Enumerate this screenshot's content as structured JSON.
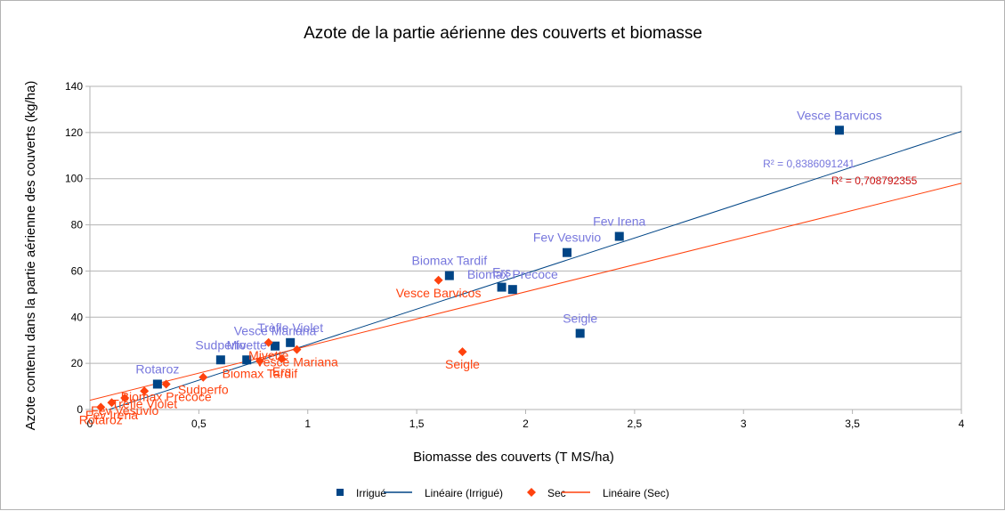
{
  "chart_data": {
    "type": "scatter",
    "title": "Azote de la partie aérienne des couverts et biomasse",
    "xlabel": "Biomasse des couverts (T MS/ha)",
    "ylabel": "Azote contenu dans la partie aérienne des couverts (kg/ha)",
    "xlim": [
      0,
      4
    ],
    "ylim": [
      0,
      140
    ],
    "xticks": [
      "0",
      "0,5",
      "1",
      "1,5",
      "2",
      "2,5",
      "3",
      "3,5",
      "4"
    ],
    "yticks": [
      "0",
      "20",
      "40",
      "60",
      "80",
      "100",
      "120",
      "140"
    ],
    "grid": "horizontal",
    "legend": "bottom",
    "legend_items": [
      "Irrigué",
      "Linéaire (Irrigué)",
      "Sec",
      "Linéaire (Sec)"
    ],
    "series": [
      {
        "name": "Irrigué",
        "color": "#004586",
        "label_color": "#7777dd",
        "marker": "square",
        "points": [
          {
            "x": 3.44,
            "y": 121,
            "label": "Vesce Barvicos"
          },
          {
            "x": 2.43,
            "y": 75,
            "label": "Fev Irena"
          },
          {
            "x": 2.19,
            "y": 68,
            "label": "Fev Vesuvio"
          },
          {
            "x": 1.65,
            "y": 58,
            "label": "Biomax Tardif"
          },
          {
            "x": 1.89,
            "y": 53,
            "label": "Ers"
          },
          {
            "x": 1.94,
            "y": 52,
            "label": "Biomax Precoce"
          },
          {
            "x": 2.25,
            "y": 33,
            "label": "Seigle"
          },
          {
            "x": 0.92,
            "y": 29,
            "label": "Trèfle Violet"
          },
          {
            "x": 0.85,
            "y": 27.5,
            "label": "Vesce Mariana"
          },
          {
            "x": 0.72,
            "y": 21.5,
            "label": "Mivette"
          },
          {
            "x": 0.6,
            "y": 21.5,
            "label": "Sudperfo"
          },
          {
            "x": 0.31,
            "y": 11,
            "label": "Rotaroz"
          }
        ]
      },
      {
        "name": "Sec",
        "color": "#ff420e",
        "label_color": "#ff420e",
        "marker": "diamond",
        "points": [
          {
            "x": 1.6,
            "y": 56,
            "label": "Vesce Barvicos"
          },
          {
            "x": 1.71,
            "y": 25,
            "label": "Seigle"
          },
          {
            "x": 0.95,
            "y": 26,
            "label": "Vesce Mariana"
          },
          {
            "x": 0.82,
            "y": 29,
            "label": "Mivette"
          },
          {
            "x": 0.88,
            "y": 22,
            "label": "Ers"
          },
          {
            "x": 0.78,
            "y": 21,
            "label": "Biomax Tardif"
          },
          {
            "x": 0.52,
            "y": 14,
            "label": "Sudperfo"
          },
          {
            "x": 0.35,
            "y": 11,
            "label": "Biomax Precoce"
          },
          {
            "x": 0.25,
            "y": 8,
            "label": "Trèfle Violet"
          },
          {
            "x": 0.16,
            "y": 5,
            "label": "Fev Vesuvio"
          },
          {
            "x": 0.1,
            "y": 3,
            "label": "Fev Irena"
          },
          {
            "x": 0.05,
            "y": 1,
            "label": "Rotaroz"
          }
        ]
      }
    ],
    "trendlines": [
      {
        "series": "Irrigué",
        "name": "Linéaire (Irrigué)",
        "color": "#004586",
        "slope": 30.8,
        "intercept": -2.7,
        "r2_label": "R² = 0,8386091241",
        "r2_color": "#7777dd"
      },
      {
        "series": "Sec",
        "name": "Linéaire (Sec)",
        "color": "#ff420e",
        "slope": 23.5,
        "intercept": 4,
        "r2_label": "R² = 0,708792355",
        "r2_color": "#cc1111"
      }
    ]
  }
}
